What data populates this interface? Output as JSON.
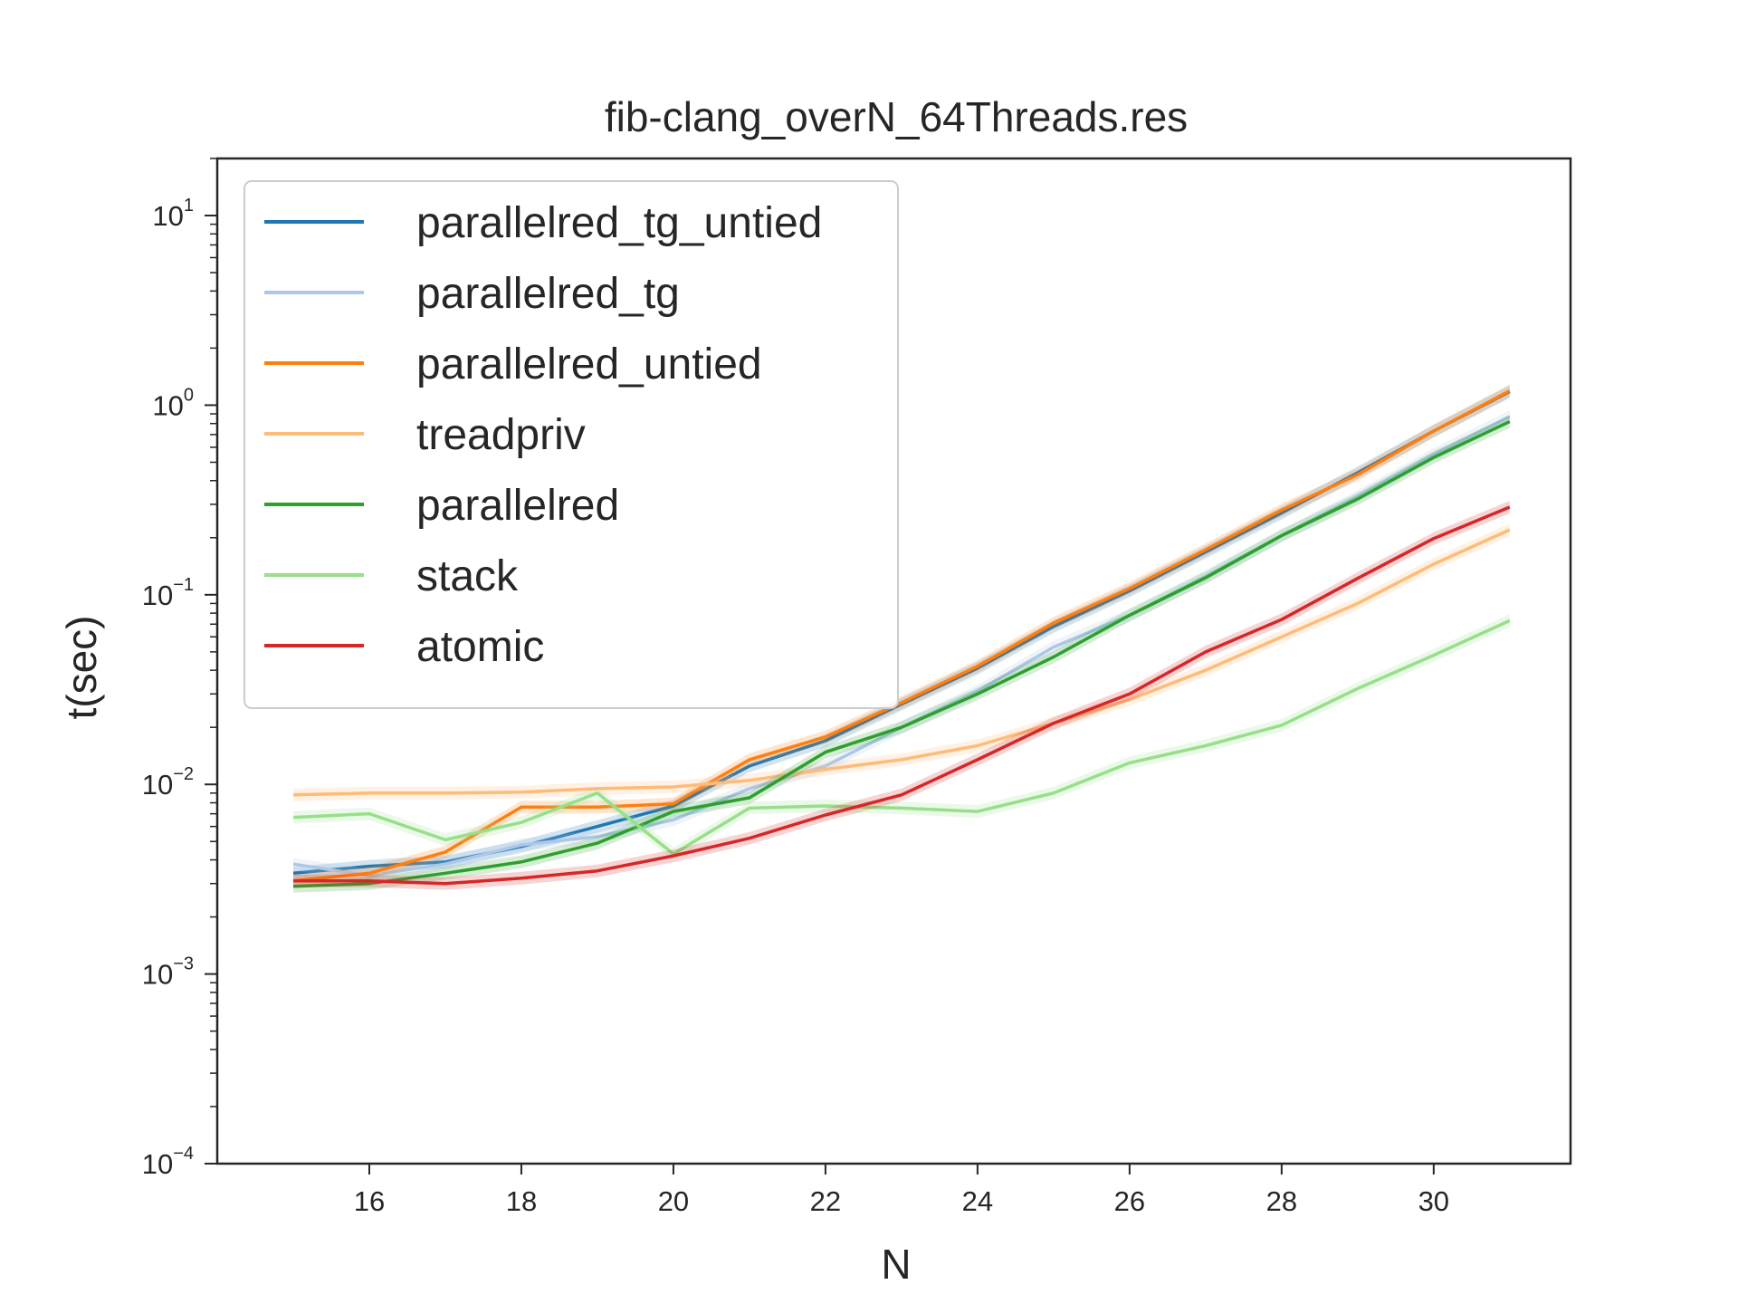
{
  "chart_data": {
    "type": "line",
    "title": "fib-clang_overN_64Threads.res",
    "xlabel": "N",
    "ylabel": "t(sec)",
    "xlim": [
      14.0,
      31.8
    ],
    "ylim": [
      0.0001,
      20
    ],
    "yscale": "log",
    "x_ticks": [
      16,
      18,
      20,
      22,
      24,
      26,
      28,
      30
    ],
    "y_ticks": [
      {
        "value": 0.0001,
        "base": "10",
        "exp": "−4"
      },
      {
        "value": 0.001,
        "base": "10",
        "exp": "−3"
      },
      {
        "value": 0.01,
        "base": "10",
        "exp": "−2"
      },
      {
        "value": 0.1,
        "base": "10",
        "exp": "−1"
      },
      {
        "value": 1,
        "base": "10",
        "exp": "0"
      },
      {
        "value": 10,
        "base": "10",
        "exp": "1"
      }
    ],
    "grid": false,
    "legend_position": "upper-left",
    "x": [
      15,
      16,
      17,
      18,
      19,
      20,
      21,
      22,
      23,
      24,
      25,
      26,
      27,
      28,
      29,
      30,
      31
    ],
    "series": [
      {
        "name": "parallelred_tg_untied",
        "color": "#1f77b4",
        "values": [
          0.0034,
          0.0037,
          0.0039,
          0.0047,
          0.006,
          0.0077,
          0.0125,
          0.017,
          0.0265,
          0.041,
          0.068,
          0.105,
          0.168,
          0.27,
          0.44,
          0.73,
          1.18
        ]
      },
      {
        "name": "parallelred_tg",
        "color": "#aec7e8",
        "values": [
          0.0038,
          0.0033,
          0.0038,
          0.0048,
          0.0053,
          0.0065,
          0.0095,
          0.0125,
          0.02,
          0.031,
          0.053,
          0.078,
          0.125,
          0.205,
          0.33,
          0.55,
          0.87
        ]
      },
      {
        "name": "parallelred_untied",
        "color": "#ff7f0e",
        "values": [
          0.0031,
          0.0034,
          0.0044,
          0.0076,
          0.0076,
          0.0079,
          0.0135,
          0.0178,
          0.027,
          0.042,
          0.071,
          0.108,
          0.173,
          0.28,
          0.43,
          0.73,
          1.19
        ]
      },
      {
        "name": "treadpriv",
        "color": "#ffbb78",
        "values": [
          0.0088,
          0.009,
          0.009,
          0.0091,
          0.0095,
          0.0097,
          0.0105,
          0.012,
          0.0135,
          0.016,
          0.021,
          0.028,
          0.04,
          0.06,
          0.09,
          0.145,
          0.22
        ]
      },
      {
        "name": "parallelred",
        "color": "#2ca02c",
        "values": [
          0.0029,
          0.003,
          0.0034,
          0.0039,
          0.0049,
          0.0072,
          0.0085,
          0.0148,
          0.02,
          0.03,
          0.047,
          0.078,
          0.123,
          0.205,
          0.32,
          0.53,
          0.82
        ]
      },
      {
        "name": "stack",
        "color": "#98df8a",
        "values": [
          0.0067,
          0.007,
          0.0051,
          0.0063,
          0.009,
          0.0043,
          0.0075,
          0.0077,
          0.0075,
          0.0072,
          0.009,
          0.013,
          0.016,
          0.0205,
          0.032,
          0.048,
          0.073
        ]
      },
      {
        "name": "atomic",
        "color": "#d62728",
        "values": [
          0.0031,
          0.0031,
          0.003,
          0.0032,
          0.0035,
          0.0042,
          0.0052,
          0.0069,
          0.0088,
          0.0135,
          0.021,
          0.03,
          0.05,
          0.074,
          0.122,
          0.198,
          0.29
        ]
      }
    ]
  }
}
